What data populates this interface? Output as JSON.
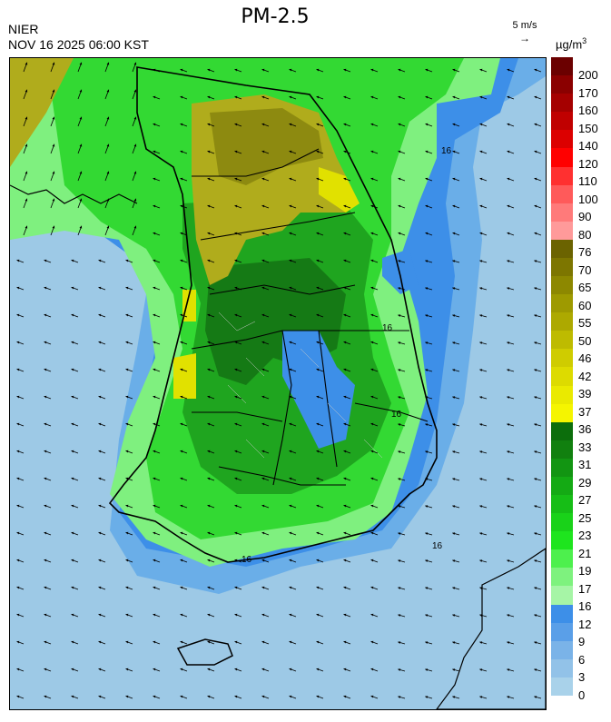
{
  "header": {
    "agency": "NIER",
    "datetime": "NOV 16 2025 06:00 KST",
    "title": "PM-2.5",
    "wind_scale_label": "5 m/s",
    "unit_main": "µg/m",
    "unit_sup": "3"
  },
  "map": {
    "contour_labels": [
      "16",
      "16",
      "16",
      "16",
      "16"
    ],
    "colors": {
      "sea_far": "#9dc9e6",
      "sea_mid": "#6aaee8",
      "sea_near": "#3d8fe8",
      "green_light": "#7ff07f",
      "green_mid": "#33d933",
      "green_dark": "#1fa51f",
      "green_deep": "#157a15",
      "olive": "#b0ac1c",
      "olive_dark": "#8d8a10",
      "yellow": "#e1e100",
      "outline": "#000000"
    }
  },
  "colorbar": {
    "labels": [
      "200",
      "170",
      "160",
      "150",
      "140",
      "120",
      "110",
      "100",
      "90",
      "80",
      "76",
      "70",
      "65",
      "60",
      "55",
      "50",
      "46",
      "42",
      "39",
      "37",
      "36",
      "33",
      "31",
      "29",
      "27",
      "25",
      "23",
      "21",
      "19",
      "17",
      "16",
      "12",
      "9",
      "6",
      "3",
      "0"
    ],
    "colors": [
      "#6b0000",
      "#8b0000",
      "#a50000",
      "#c00000",
      "#dc0000",
      "#ff0000",
      "#ff3030",
      "#ff5a5a",
      "#ff7a7a",
      "#ff9a9a",
      "#6b6300",
      "#7d7600",
      "#8d8800",
      "#9e9a00",
      "#ada900",
      "#bebb00",
      "#cfcc00",
      "#dddb00",
      "#eaea00",
      "#f5f500",
      "#0c6e0c",
      "#11800f",
      "#129512",
      "#14aa14",
      "#16be16",
      "#19d219",
      "#1ee51e",
      "#4df04d",
      "#7ef27e",
      "#a6f5a6",
      "#3d8fe8",
      "#5a9fe8",
      "#7ab3e8",
      "#92c2e8",
      "#a9d2ea"
    ]
  }
}
